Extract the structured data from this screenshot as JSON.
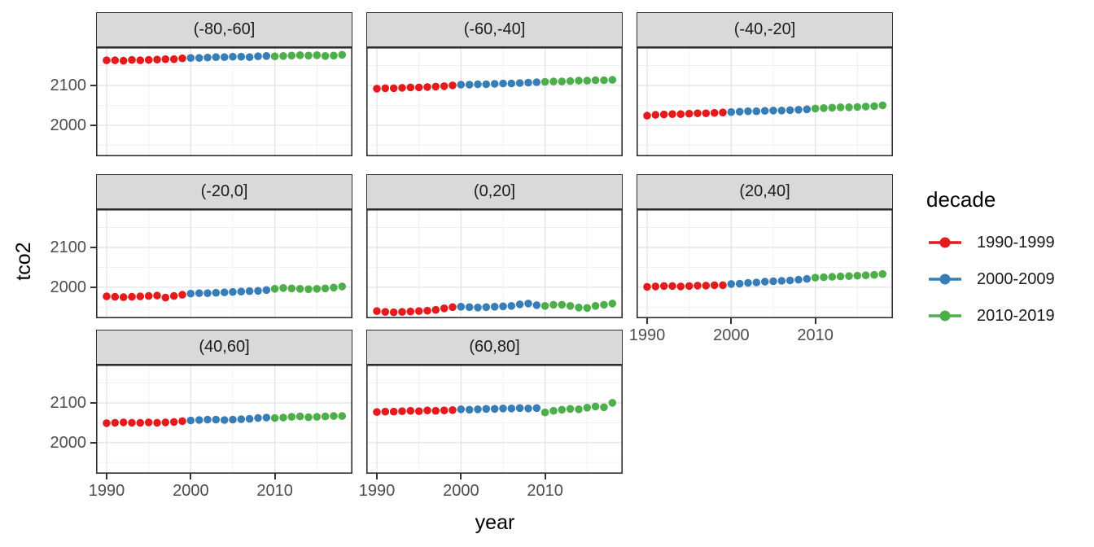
{
  "chart_data": {
    "type": "scatter",
    "title": "",
    "xlabel": "year",
    "ylabel": "tco2",
    "legend_position": "right",
    "grid": "major+minor",
    "xlim": [
      1988.74,
      2019.23
    ],
    "ylim": [
      1922,
      2196
    ],
    "x_ticks": [
      {
        "year": 1990,
        "label": "1990"
      },
      {
        "year": 2000,
        "label": "2000"
      },
      {
        "year": 2010,
        "label": "2010"
      }
    ],
    "y_ticks": [
      {
        "value": 2100,
        "label": "2100"
      },
      {
        "value": 2000,
        "label": "2000"
      }
    ],
    "x_minor": [
      1995,
      2005,
      2015
    ],
    "y_minor": [
      1950,
      2050,
      2150
    ],
    "legend": {
      "title": "decade"
    },
    "decades": [
      {
        "label": "1990-1999",
        "start": 1990,
        "end": 1999,
        "color": "#E41A1C"
      },
      {
        "label": "2000-2009",
        "start": 2000,
        "end": 2009,
        "color": "#377EB8"
      },
      {
        "label": "2010-2019",
        "start": 2010,
        "end": 2019,
        "color": "#4DAF4A"
      }
    ],
    "years": [
      1990,
      1991,
      1992,
      1993,
      1994,
      1995,
      1996,
      1997,
      1998,
      1999,
      2000,
      2001,
      2002,
      2003,
      2004,
      2005,
      2006,
      2007,
      2008,
      2009,
      2010,
      2011,
      2012,
      2013,
      2014,
      2015,
      2016,
      2017,
      2018
    ],
    "facets": [
      {
        "label": "(-80,-60]",
        "tco2": [
          2163,
          2163,
          2162,
          2164,
          2163,
          2164,
          2165,
          2166,
          2166,
          2168,
          2169,
          2169,
          2170,
          2171,
          2171,
          2172,
          2172,
          2171,
          2173,
          2174,
          2173,
          2174,
          2175,
          2176,
          2175,
          2176,
          2174,
          2175,
          2177
        ]
      },
      {
        "label": "(-60,-40]",
        "tco2": [
          2092,
          2093,
          2093,
          2094,
          2095,
          2095,
          2096,
          2097,
          2098,
          2100,
          2102,
          2102,
          2103,
          2103,
          2104,
          2105,
          2105,
          2106,
          2107,
          2108,
          2109,
          2110,
          2110,
          2111,
          2112,
          2112,
          2113,
          2113,
          2114
        ]
      },
      {
        "label": "(-40,-20]",
        "tco2": [
          2024,
          2026,
          2027,
          2028,
          2028,
          2029,
          2030,
          2030,
          2031,
          2032,
          2033,
          2034,
          2035,
          2035,
          2036,
          2037,
          2037,
          2038,
          2039,
          2040,
          2042,
          2043,
          2044,
          2045,
          2045,
          2046,
          2047,
          2048,
          2050
        ]
      },
      {
        "label": "(-20,0]",
        "tco2": [
          1977,
          1976,
          1975,
          1976,
          1977,
          1978,
          1979,
          1974,
          1978,
          1981,
          1984,
          1985,
          1985,
          1986,
          1987,
          1988,
          1989,
          1990,
          1991,
          1993,
          1996,
          1998,
          1997,
          1996,
          1995,
          1996,
          1997,
          1999,
          2002
        ]
      },
      {
        "label": "(0,20]",
        "tco2": [
          1940,
          1938,
          1937,
          1938,
          1939,
          1940,
          1941,
          1943,
          1947,
          1950,
          1951,
          1950,
          1949,
          1950,
          1951,
          1952,
          1953,
          1957,
          1959,
          1955,
          1953,
          1956,
          1956,
          1953,
          1949,
          1948,
          1953,
          1956,
          1959
        ]
      },
      {
        "label": "(20,40]",
        "tco2": [
          2001,
          2002,
          2003,
          2003,
          2002,
          2003,
          2004,
          2004,
          2005,
          2005,
          2008,
          2009,
          2011,
          2012,
          2014,
          2015,
          2016,
          2017,
          2019,
          2021,
          2024,
          2025,
          2026,
          2027,
          2028,
          2029,
          2030,
          2031,
          2033
        ]
      },
      {
        "label": "(40,60]",
        "tco2": [
          2049,
          2050,
          2051,
          2050,
          2050,
          2051,
          2050,
          2051,
          2052,
          2054,
          2056,
          2057,
          2058,
          2058,
          2057,
          2058,
          2059,
          2060,
          2062,
          2063,
          2062,
          2063,
          2065,
          2066,
          2064,
          2065,
          2066,
          2067,
          2067
        ]
      },
      {
        "label": "(60,80]",
        "tco2": [
          2077,
          2078,
          2078,
          2079,
          2080,
          2079,
          2081,
          2080,
          2081,
          2082,
          2084,
          2083,
          2084,
          2085,
          2085,
          2086,
          2086,
          2087,
          2086,
          2087,
          2076,
          2080,
          2083,
          2085,
          2084,
          2088,
          2091,
          2089,
          2100
        ]
      }
    ]
  },
  "theme": {
    "background": "#FFFFFF",
    "strip_bg": "#D9D9D9",
    "panel_border": "#2E2E2E",
    "grid_major": "#E4E4E4",
    "grid_minor": "#F1F1F1",
    "tick_color": "#333333",
    "tick_label_color": "#4D4D4D",
    "text_color": "#1A1A1A"
  }
}
